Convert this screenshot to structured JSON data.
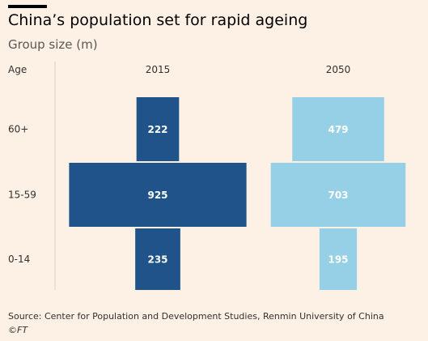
{
  "header": {
    "title": "China’s population set for rapid ageing",
    "subtitle": "Group size (m)"
  },
  "chart_data": {
    "type": "bar",
    "title": "China’s population set for rapid ageing",
    "subtitle": "Group size (m)",
    "row_header": "Age",
    "categories": [
      "60+",
      "15-59",
      "0-14"
    ],
    "series": [
      {
        "name": "2015",
        "values": [
          222,
          925,
          235
        ],
        "color": "#1f5389"
      },
      {
        "name": "2050",
        "values": [
          479,
          703,
          195
        ],
        "color": "#96d0e6"
      }
    ],
    "orientation": "horizontal-centered",
    "grid": false,
    "legend": "none"
  },
  "footer": {
    "source": "Source: Center for Population and Development Studies, Renmin University of China",
    "credit": "©FT"
  }
}
